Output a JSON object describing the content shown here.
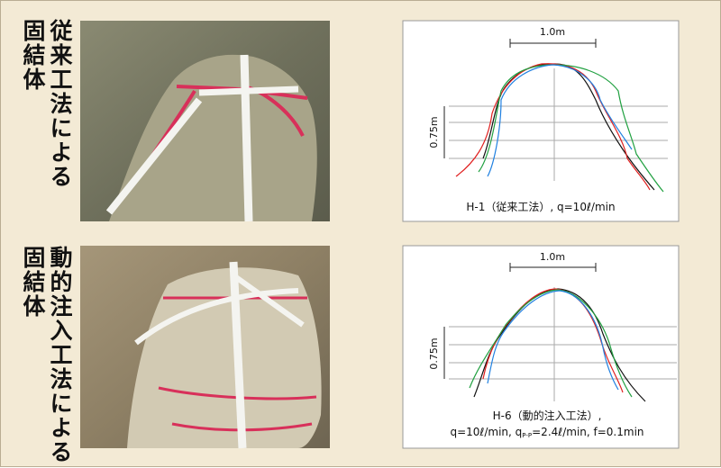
{
  "panels": [
    {
      "label_lines": [
        "従来工法による",
        "固結体"
      ],
      "profile": {
        "scale_width": "1.0m",
        "scale_height": "0.75m",
        "caption_lines": [
          "H-1（従来工法）, q=10ℓ/min"
        ]
      }
    },
    {
      "label_lines": [
        "動的注入工法による",
        "固結体"
      ],
      "profile": {
        "scale_width": "1.0m",
        "scale_height": "0.75m",
        "caption_lines": [
          "H-6（動的注入工法）,"
        ],
        "caption_formula": {
          "prefix": "q=10ℓ/min, q",
          "subscript": "P-P",
          "suffix": "=2.4ℓ/min, f=0.1min"
        }
      }
    }
  ]
}
